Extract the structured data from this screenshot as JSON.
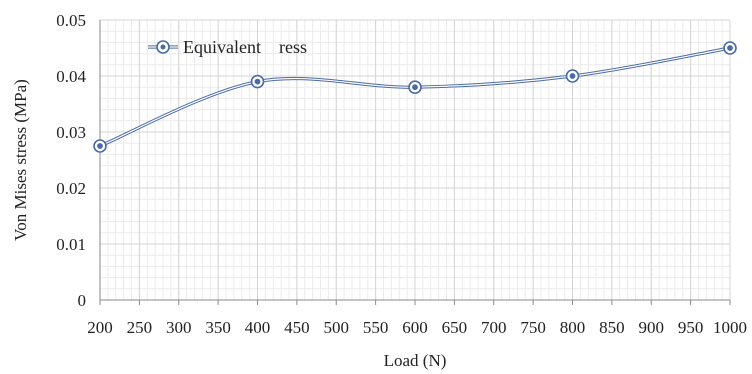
{
  "chart_data": {
    "type": "line",
    "title": "",
    "xlabel": "Load (N)",
    "ylabel": "Von Mises stress (MPa)",
    "xlim": [
      200,
      1000
    ],
    "ylim": [
      0,
      0.05
    ],
    "x_ticks": [
      200,
      250,
      300,
      350,
      400,
      450,
      500,
      550,
      600,
      650,
      700,
      750,
      800,
      850,
      900,
      950,
      1000
    ],
    "y_ticks": [
      0,
      0.01,
      0.02,
      0.03,
      0.04,
      0.05
    ],
    "y_tick_labels": [
      "0",
      "0.01",
      "0.02",
      "0.03",
      "0.04",
      "0.05"
    ],
    "grid": true,
    "legend_position": "top-left",
    "series": [
      {
        "name": "Equivalent    ress",
        "color": "#4a6aa8",
        "x": [
          200,
          400,
          600,
          800,
          1000
        ],
        "y": [
          0.0275,
          0.039,
          0.038,
          0.04,
          0.045
        ]
      }
    ]
  }
}
